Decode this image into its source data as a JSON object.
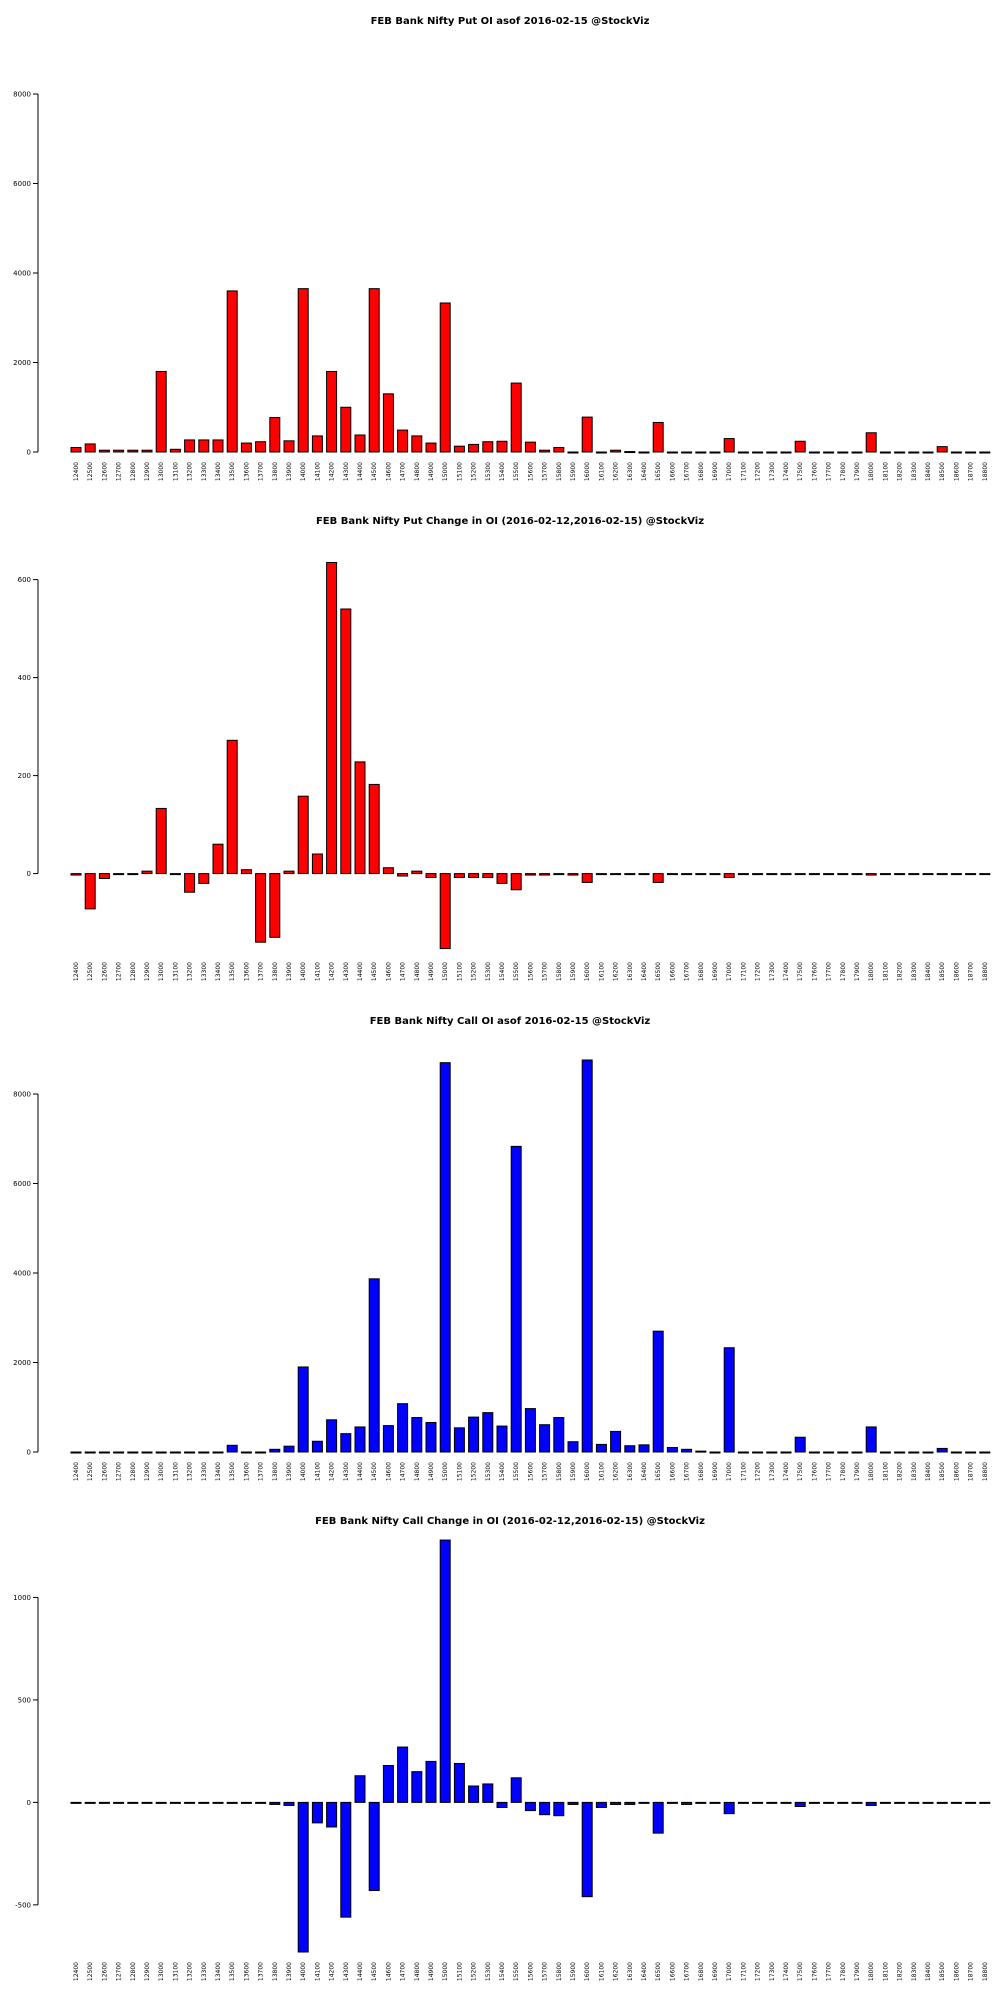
{
  "strikes": [
    "12400",
    "12500",
    "12600",
    "12700",
    "12800",
    "12900",
    "13000",
    "13100",
    "13200",
    "13300",
    "13400",
    "13500",
    "13600",
    "13700",
    "13800",
    "13900",
    "14000",
    "14100",
    "14200",
    "14300",
    "14400",
    "14500",
    "14600",
    "14700",
    "14800",
    "14900",
    "15000",
    "15100",
    "15200",
    "15300",
    "15400",
    "15500",
    "15600",
    "15700",
    "15800",
    "15900",
    "16000",
    "16100",
    "16200",
    "16300",
    "16400",
    "16500",
    "16600",
    "16700",
    "16800",
    "16900",
    "17000",
    "17100",
    "17200",
    "17300",
    "17400",
    "17500",
    "17600",
    "17700",
    "17800",
    "17900",
    "18000",
    "18100",
    "18200",
    "18300",
    "18400",
    "18500",
    "18600",
    "18700",
    "18800"
  ],
  "chart_data": [
    {
      "type": "bar",
      "title": "FEB Bank Nifty Put OI asof 2016-02-15 @StockViz",
      "color": "#ff0000",
      "ylim": [
        0,
        8000
      ],
      "yticks": [
        0,
        2000,
        4000,
        6000,
        8000
      ],
      "ytick_labels": [
        "0",
        "2000",
        "4000",
        "6000",
        "8000"
      ],
      "values": [
        100,
        180,
        40,
        40,
        40,
        40,
        1800,
        60,
        270,
        270,
        270,
        3600,
        200,
        230,
        770,
        250,
        3650,
        360,
        1800,
        1000,
        380,
        3650,
        1300,
        490,
        360,
        200,
        3330,
        130,
        170,
        230,
        240,
        1540,
        220,
        40,
        100,
        0,
        780,
        0,
        40,
        10,
        0,
        660,
        0,
        0,
        0,
        0,
        300,
        0,
        0,
        0,
        0,
        240,
        0,
        0,
        0,
        0,
        430,
        0,
        0,
        0,
        0,
        120,
        0,
        0,
        0
      ]
    },
    {
      "type": "bar",
      "title": "FEB Bank Nifty Put Change in OI (2016-02-12,2016-02-15) @StockViz",
      "color": "#ff0000",
      "ylim": [
        -160,
        640
      ],
      "yticks": [
        0,
        200,
        400,
        600
      ],
      "ytick_labels": [
        "0",
        "200",
        "400",
        "600"
      ],
      "values": [
        -3,
        -72,
        -10,
        -2,
        -2,
        5,
        133,
        0,
        -38,
        -20,
        60,
        272,
        8,
        -140,
        -130,
        5,
        158,
        40,
        635,
        540,
        228,
        182,
        12,
        -5,
        5,
        -8,
        -153,
        -8,
        -8,
        -8,
        -20,
        -33,
        -3,
        -3,
        0,
        -3,
        -18,
        0,
        0,
        0,
        -2,
        -18,
        0,
        0,
        0,
        0,
        -8,
        0,
        0,
        0,
        0,
        -2,
        0,
        0,
        0,
        0,
        -3,
        0,
        0,
        0,
        0,
        -2,
        0,
        0,
        0
      ]
    },
    {
      "type": "bar",
      "title": "FEB Bank Nifty Call OI asof 2016-02-15 @StockViz",
      "color": "#0000ff",
      "ylim": [
        0,
        8000
      ],
      "yticks": [
        0,
        2000,
        4000,
        6000,
        8000
      ],
      "ytick_labels": [
        "0",
        "2000",
        "4000",
        "6000",
        "8000"
      ],
      "values": [
        0,
        0,
        0,
        0,
        0,
        0,
        0,
        0,
        0,
        0,
        0,
        150,
        0,
        0,
        60,
        130,
        1900,
        240,
        720,
        410,
        560,
        3870,
        590,
        1080,
        770,
        660,
        8700,
        540,
        780,
        880,
        580,
        6830,
        970,
        610,
        770,
        230,
        8760,
        170,
        460,
        140,
        160,
        2700,
        100,
        60,
        20,
        0,
        2330,
        0,
        0,
        0,
        0,
        330,
        0,
        0,
        0,
        0,
        560,
        0,
        0,
        0,
        0,
        80,
        0,
        0,
        0
      ]
    },
    {
      "type": "bar",
      "title": "FEB Bank Nifty Call Change in OI (2016-02-12,2016-02-15) @StockViz",
      "color": "#0000ff",
      "ylim": [
        -730,
        1290
      ],
      "yticks": [
        -500,
        0,
        500,
        1000
      ],
      "ytick_labels": [
        "-500",
        "0",
        "500",
        "1000"
      ],
      "values": [
        0,
        0,
        0,
        0,
        0,
        0,
        -5,
        0,
        0,
        0,
        0,
        -5,
        0,
        0,
        -10,
        -15,
        -730,
        -100,
        -120,
        -560,
        130,
        -430,
        180,
        270,
        150,
        200,
        1280,
        190,
        80,
        90,
        -25,
        120,
        -40,
        -60,
        -65,
        -10,
        -460,
        -25,
        -10,
        -10,
        0,
        -150,
        0,
        -10,
        0,
        -5,
        -55,
        0,
        0,
        0,
        0,
        -20,
        0,
        0,
        0,
        0,
        -15,
        0,
        0,
        0,
        0,
        -5,
        0,
        0,
        0
      ]
    }
  ]
}
